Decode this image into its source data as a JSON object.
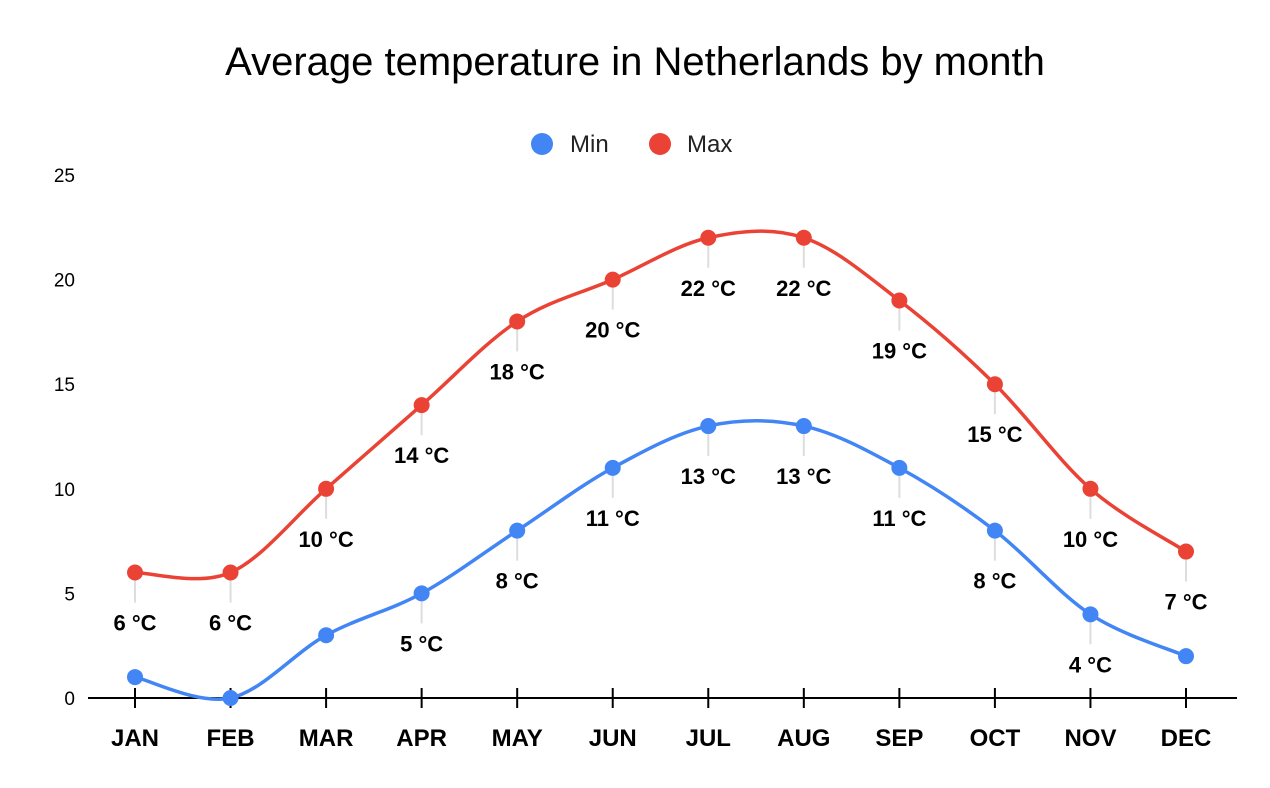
{
  "chart_data": {
    "type": "line",
    "title": "Average temperature in Netherlands by month",
    "xlabel": "",
    "ylabel": "",
    "categories": [
      "JAN",
      "FEB",
      "MAR",
      "APR",
      "MAY",
      "JUN",
      "JUL",
      "AUG",
      "SEP",
      "OCT",
      "NOV",
      "DEC"
    ],
    "ylim": [
      0,
      25
    ],
    "yticks": [
      "0",
      "5",
      "10",
      "15",
      "20",
      "25"
    ],
    "grid": false,
    "smooth": true,
    "legend": "top",
    "unit_suffix": " °C",
    "series": [
      {
        "name": "Min",
        "color": "#4285f4",
        "values": [
          1,
          0,
          3,
          5,
          8,
          11,
          13,
          13,
          11,
          8,
          4,
          2
        ],
        "labels": [
          "",
          "",
          "",
          "5 °C",
          "8 °C",
          "11 °C",
          "13 °C",
          "13 °C",
          "11 °C",
          "8 °C",
          "4 °C",
          ""
        ]
      },
      {
        "name": "Max",
        "color": "#ea4335",
        "values": [
          6,
          6,
          10,
          14,
          18,
          20,
          22,
          22,
          19,
          15,
          10,
          7
        ],
        "labels": [
          "6 °C",
          "6 °C",
          "10 °C",
          "14 °C",
          "18 °C",
          "20 °C",
          "22 °C",
          "22 °C",
          "19 °C",
          "15 °C",
          "10 °C",
          "7 °C"
        ]
      }
    ]
  }
}
